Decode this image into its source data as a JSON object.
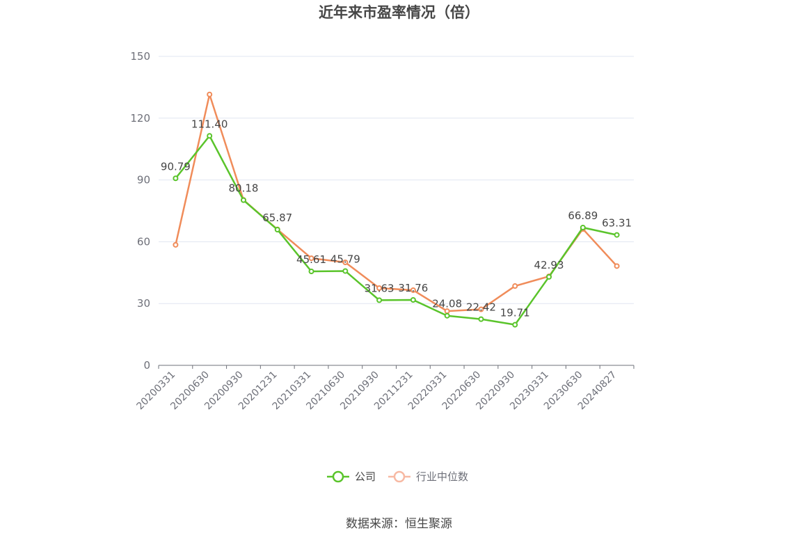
{
  "title": "近年来市盈率情况（倍）",
  "source": "数据来源：恒生聚源",
  "chart_data": {
    "type": "line",
    "categories": [
      "20200331",
      "20200630",
      "20200930",
      "20201231",
      "20210331",
      "20210630",
      "20210930",
      "20211231",
      "20220331",
      "20220630",
      "20220930",
      "20230331",
      "20230630",
      "20240827"
    ],
    "ylim": [
      0,
      150
    ],
    "yticks": [
      0,
      30,
      60,
      90,
      120,
      150
    ],
    "grid": true,
    "legend_position": "bottom",
    "series": [
      {
        "name": "公司",
        "color": "#5ac42b",
        "values": [
          90.79,
          111.4,
          80.18,
          65.87,
          45.61,
          45.79,
          31.63,
          31.76,
          24.08,
          22.42,
          19.71,
          42.93,
          66.89,
          63.31
        ],
        "labels": [
          "90.79",
          "111.40",
          "80.18",
          "65.87",
          "45.61",
          "45.79",
          "31.63",
          "31.76",
          "24.08",
          "22.42",
          "19.71",
          "42.93",
          "66.89",
          "63.31"
        ]
      },
      {
        "name": "行业中位数",
        "color": "#f08c5a",
        "legend_color": "#f7b9a3",
        "values": [
          58.5,
          131.5,
          80.3,
          66.0,
          52.0,
          50.0,
          37.5,
          36.5,
          26.3,
          27.2,
          38.5,
          43.2,
          66.2,
          48.2
        ]
      }
    ]
  }
}
